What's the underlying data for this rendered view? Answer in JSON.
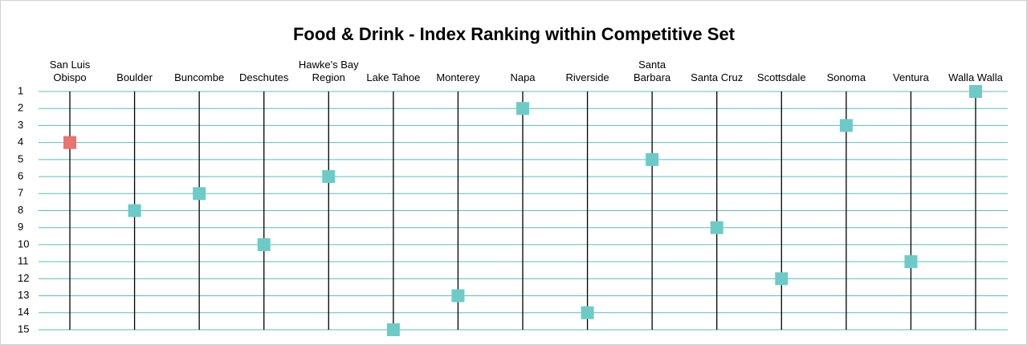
{
  "chart_data": {
    "type": "dot",
    "title": "Food & Drink - Index Ranking within Competitive Set",
    "categories": [
      "San Luis Obispo",
      "Boulder",
      "Buncombe",
      "Deschutes",
      "Hawke's Bay Region",
      "Lake Tahoe",
      "Monterey",
      "Napa",
      "Riverside",
      "Santa Barbara",
      "Santa Cruz",
      "Scottsdale",
      "Sonoma",
      "Ventura",
      "Walla Walla"
    ],
    "values": [
      4,
      8,
      7,
      10,
      6,
      15,
      13,
      2,
      14,
      5,
      9,
      12,
      3,
      11,
      1
    ],
    "colors": [
      "#e8736f",
      "#6ccbc6",
      "#6ccbc6",
      "#6ccbc6",
      "#6ccbc6",
      "#6ccbc6",
      "#6ccbc6",
      "#6ccbc6",
      "#6ccbc6",
      "#6ccbc6",
      "#6ccbc6",
      "#6ccbc6",
      "#6ccbc6",
      "#6ccbc6",
      "#6ccbc6"
    ],
    "ylim": [
      1,
      15
    ],
    "yticks": [
      1,
      2,
      3,
      4,
      5,
      6,
      7,
      8,
      9,
      10,
      11,
      12,
      13,
      14,
      15
    ],
    "y_inverted": true,
    "grid": true,
    "grid_color": "#5bbdb8"
  }
}
